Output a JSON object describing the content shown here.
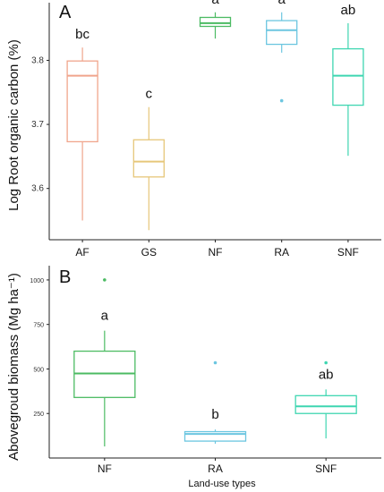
{
  "chart_data": [
    {
      "type": "box",
      "panel_label": "A",
      "ylabel": "Log Root organic carbon (%)",
      "xlabel": "",
      "ylim": [
        3.52,
        3.89
      ],
      "yticks": [
        "3.6",
        "3.7",
        "3.8"
      ],
      "ytick_values": [
        3.6,
        3.7,
        3.8
      ],
      "grid": false,
      "categories": [
        "AF",
        "GS",
        "NF",
        "RA",
        "SNF"
      ],
      "boxes": [
        {
          "category": "AF",
          "min": 3.55,
          "q1": 3.673,
          "median": 3.776,
          "q3": 3.799,
          "max": 3.82,
          "outliers": [],
          "letter": "bc",
          "color": "#f0a58c"
        },
        {
          "category": "GS",
          "min": 3.535,
          "q1": 3.618,
          "median": 3.642,
          "q3": 3.676,
          "max": 3.727,
          "outliers": [],
          "letter": "c",
          "color": "#e6c77a"
        },
        {
          "category": "NF",
          "min": 3.834,
          "q1": 3.853,
          "median": 3.858,
          "q3": 3.867,
          "max": 3.875,
          "outliers": [],
          "letter": "a",
          "color": "#4cbb63"
        },
        {
          "category": "RA",
          "min": 3.812,
          "q1": 3.825,
          "median": 3.847,
          "q3": 3.862,
          "max": 3.875,
          "outliers": [
            3.737
          ],
          "letter": "a",
          "color": "#6cc6e0"
        },
        {
          "category": "SNF",
          "min": 3.651,
          "q1": 3.73,
          "median": 3.776,
          "q3": 3.818,
          "max": 3.858,
          "outliers": [],
          "letter": "ab",
          "color": "#3fd6b1"
        }
      ]
    },
    {
      "type": "box",
      "panel_label": "B",
      "ylabel": "Abovegroud biomass (Mg ha⁻¹)",
      "xlabel": "Land-use types",
      "ylim": [
        0,
        1080
      ],
      "yticks": [
        "250",
        "500",
        "750",
        "1000"
      ],
      "ytick_values": [
        250,
        500,
        750,
        1000
      ],
      "grid": false,
      "categories": [
        "NF",
        "RA",
        "SNF"
      ],
      "boxes": [
        {
          "category": "NF",
          "min": 65,
          "q1": 340,
          "median": 475,
          "q3": 600,
          "max": 715,
          "outliers": [
            1000
          ],
          "letter": "a",
          "color": "#4cbb63"
        },
        {
          "category": "RA",
          "min": 80,
          "q1": 95,
          "median": 135,
          "q3": 148,
          "max": 160,
          "outliers": [
            535
          ],
          "letter": "b",
          "color": "#6cc6e0"
        },
        {
          "category": "SNF",
          "min": 110,
          "q1": 250,
          "median": 290,
          "q3": 350,
          "max": 385,
          "outliers": [
            535
          ],
          "letter": "ab",
          "color": "#3fd6b1"
        }
      ]
    }
  ]
}
